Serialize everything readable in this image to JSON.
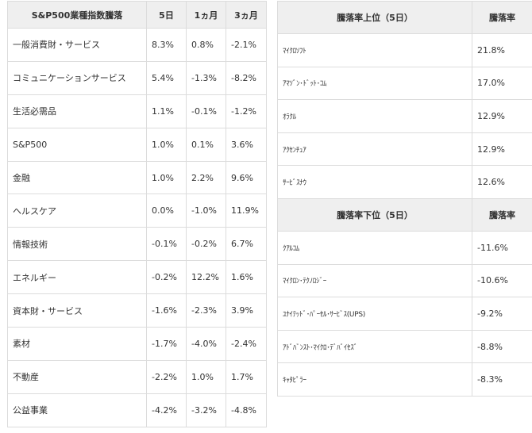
{
  "sector_table": {
    "headers": [
      "S&P500業種指数騰落",
      "5日",
      "1ヵ月",
      "3ヵ月"
    ],
    "rows": [
      [
        "一般消費財・サービス",
        "8.3%",
        "0.8%",
        "-2.1%"
      ],
      [
        "コミュニケーションサービス",
        "5.4%",
        "-1.3%",
        "-8.2%"
      ],
      [
        "生活必需品",
        "1.1%",
        "-0.1%",
        "-1.2%"
      ],
      [
        "S&P500",
        "1.0%",
        "0.1%",
        "3.6%"
      ],
      [
        "金融",
        "1.0%",
        "2.2%",
        "9.6%"
      ],
      [
        "ヘルスケア",
        "0.0%",
        "-1.0%",
        "11.9%"
      ],
      [
        "情報技術",
        "-0.1%",
        "-0.2%",
        "6.7%"
      ],
      [
        "エネルギー",
        "-0.2%",
        "12.2%",
        "1.6%"
      ],
      [
        "資本財・サービス",
        "-1.6%",
        "-2.3%",
        "3.9%"
      ],
      [
        "素材",
        "-1.7%",
        "-4.0%",
        "-2.4%"
      ],
      [
        "不動産",
        "-2.2%",
        "1.0%",
        "1.7%"
      ],
      [
        "公益事業",
        "-4.2%",
        "-3.2%",
        "-4.8%"
      ]
    ]
  },
  "top_gainers": {
    "headers": [
      "騰落率上位（5日）",
      "騰落率"
    ],
    "rows": [
      [
        "ﾏｲｸﾛｿﾌﾄ",
        "21.8%"
      ],
      [
        "ｱﾏｿﾞﾝ･ﾄﾞｯﾄ･ｺﾑ",
        "17.0%"
      ],
      [
        "ｵﾗｸﾙ",
        "12.9%"
      ],
      [
        "ｱｸｾﾝﾁｭｱ",
        "12.9%"
      ],
      [
        "ｻｰﾋﾞｽﾅｳ",
        "12.6%"
      ]
    ]
  },
  "top_losers": {
    "headers": [
      "騰落率下位（5日）",
      "騰落率"
    ],
    "rows": [
      [
        "ｸｱﾙｺﾑ",
        "-11.6%"
      ],
      [
        "ﾏｲｸﾛﾝ･ﾃｸﾉﾛｼﾞｰ",
        "-10.6%"
      ],
      [
        "ﾕﾅｲﾃｯﾄﾞ･ﾊﾟｰｾﾙ･ｻｰﾋﾞｽ(UPS)",
        "-9.2%"
      ],
      [
        "ｱﾄﾞﾊﾞﾝｽﾄ･ﾏｲｸﾛ･ﾃﾞﾊﾞｲｾｽﾞ",
        "-8.8%"
      ],
      [
        "ｷｬﾀﾋﾟﾗｰ",
        "-8.3%"
      ]
    ]
  }
}
